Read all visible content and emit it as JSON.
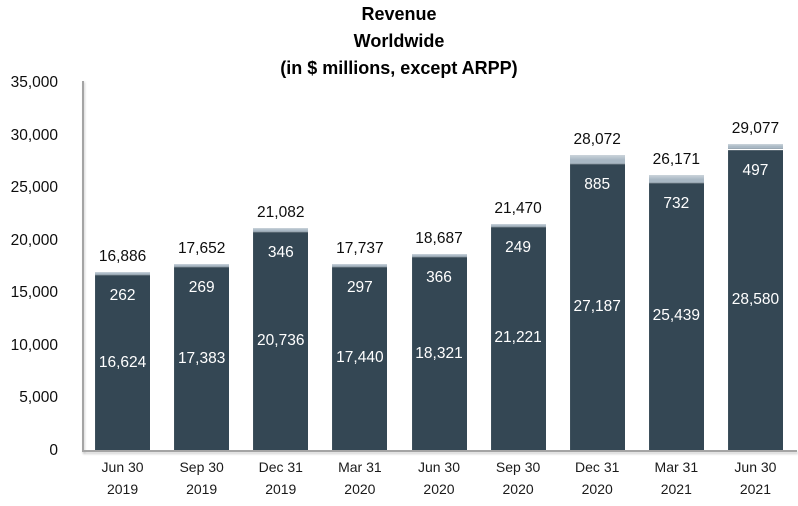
{
  "title": {
    "line1": "Revenue",
    "line2": "Worldwide",
    "line3": "(in $ millions, except ARPP)"
  },
  "colors": {
    "bar_primary": "#344754",
    "bar_secondary": "#a9b8c4",
    "bar_secondary_highlight": "#cbd4db",
    "axis_line": "#a4a4a4",
    "total_label": "#0d0d0d",
    "inside_label": "#ffffff",
    "background": "#ffffff"
  },
  "chart_data": {
    "type": "bar",
    "stacked": true,
    "title": "Revenue Worldwide (in $ millions, except ARPP)",
    "legend_position": "none",
    "grid": false,
    "categories": [
      [
        "Jun 30",
        "2019"
      ],
      [
        "Sep 30",
        "2019"
      ],
      [
        "Dec 31",
        "2019"
      ],
      [
        "Mar 31",
        "2020"
      ],
      [
        "Jun 30",
        "2020"
      ],
      [
        "Sep 30",
        "2020"
      ],
      [
        "Dec 31",
        "2020"
      ],
      [
        "Mar 31",
        "2021"
      ],
      [
        "Jun 30",
        "2021"
      ]
    ],
    "series": [
      {
        "name": "revenue-primary",
        "values": [
          16624,
          17383,
          20736,
          17440,
          18321,
          21221,
          27187,
          25439,
          28580
        ],
        "labels": [
          "16,624",
          "17,383",
          "20,736",
          "17,440",
          "18,321",
          "21,221",
          "27,187",
          "25,439",
          "28,580"
        ]
      },
      {
        "name": "revenue-secondary",
        "values": [
          262,
          269,
          346,
          297,
          366,
          249,
          885,
          732,
          497
        ],
        "labels": [
          "262",
          "269",
          "346",
          "297",
          "366",
          "249",
          "885",
          "732",
          "497"
        ]
      }
    ],
    "totals": {
      "values": [
        16886,
        17652,
        21082,
        17737,
        18687,
        21470,
        28072,
        26171,
        29077
      ],
      "labels": [
        "16,886",
        "17,652",
        "21,082",
        "17,737",
        "18,687",
        "21,470",
        "28,072",
        "26,171",
        "29,077"
      ]
    },
    "y_axis": {
      "min": 0,
      "max": 35000,
      "step": 5000,
      "tick_labels": [
        "0",
        "5,000",
        "10,000",
        "15,000",
        "20,000",
        "25,000",
        "30,000",
        "35,000"
      ]
    }
  }
}
